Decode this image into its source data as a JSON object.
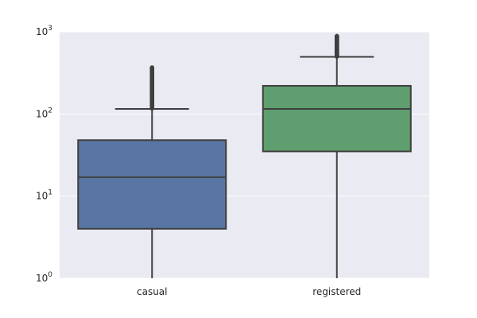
{
  "chart_data": {
    "type": "box",
    "title": "",
    "xlabel": "",
    "ylabel": "",
    "y_scale": "log",
    "ylim": [
      1,
      1000
    ],
    "y_ticks": [
      {
        "value": 1,
        "base": "10",
        "exp": "0"
      },
      {
        "value": 10,
        "base": "10",
        "exp": "1"
      },
      {
        "value": 100,
        "base": "10",
        "exp": "2"
      },
      {
        "value": 1000,
        "base": "10",
        "exp": "3"
      }
    ],
    "grid": true,
    "categories": [
      "casual",
      "registered"
    ],
    "boxes": [
      {
        "category": "casual",
        "color": "#5875a4",
        "whisker_low": 1,
        "q1": 4,
        "median": 17,
        "q3": 48,
        "whisker_high": 115,
        "outliers_range": [
          117,
          367
        ]
      },
      {
        "category": "registered",
        "color": "#5f9e6e",
        "whisker_low": 1,
        "q1": 35,
        "median": 115,
        "q3": 220,
        "whisker_high": 495,
        "outliers_range": [
          500,
          886
        ]
      }
    ],
    "colors": {
      "background": "#eaeaf2",
      "grid": "#ffffff",
      "line": "#3f3f3f"
    }
  }
}
